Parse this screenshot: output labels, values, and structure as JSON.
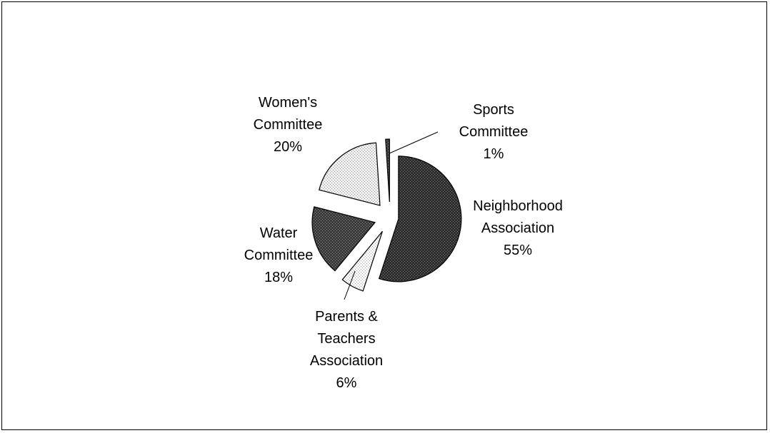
{
  "chart_data": {
    "type": "pie",
    "title": "",
    "slices": [
      {
        "label_lines": [
          "Neighborhood",
          "Association",
          "55%"
        ],
        "label": "Neighborhood Association",
        "value": 55,
        "fill": "#3a3a3a"
      },
      {
        "label_lines": [
          "Parents &",
          "Teachers",
          "Association",
          "6%"
        ],
        "label": "Parents & Teachers Association",
        "value": 6,
        "fill": "#e8e8e8"
      },
      {
        "label_lines": [
          "Water",
          "Committee",
          "18%"
        ],
        "label": "Water Committee",
        "value": 18,
        "fill": "#4a4a4a"
      },
      {
        "label_lines": [
          "Women's",
          "Committee",
          "20%"
        ],
        "label": "Women's Committee",
        "value": 20,
        "fill": "#d9d9d9"
      },
      {
        "label_lines": [
          "Sports",
          "Committee",
          "1%"
        ],
        "label": "Sports Committee",
        "value": 1,
        "fill": "#555555"
      }
    ],
    "exploded": true,
    "legend": "none"
  }
}
